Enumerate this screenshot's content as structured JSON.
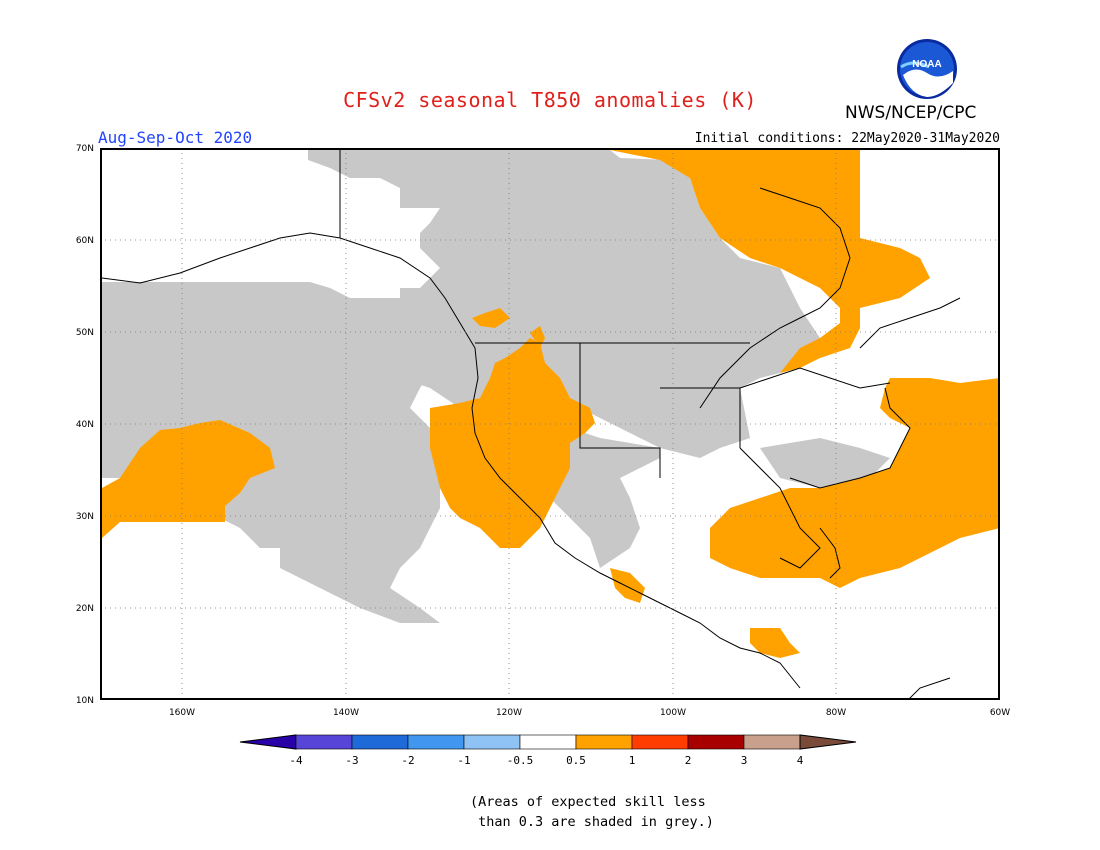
{
  "header": {
    "title": "CFSv2 seasonal T850 anomalies (K)",
    "season": "Aug-Sep-Oct 2020",
    "initial_conditions": "Initial conditions: 22May2020-31May2020",
    "agency": "NWS/NCEP/CPC",
    "logo_text": "NOAA"
  },
  "map": {
    "lat_labels": [
      "70N",
      "60N",
      "50N",
      "40N",
      "30N",
      "20N",
      "10N"
    ],
    "lon_labels": [
      "160W",
      "140W",
      "120W",
      "100W",
      "80W",
      "60W"
    ],
    "colors": {
      "skill_grey": "#c8c8c8",
      "warm": "#ffa200",
      "coast": "#000000"
    }
  },
  "legend": {
    "labels": [
      "-4",
      "-3",
      "-2",
      "-1",
      "-0.5",
      "0.5",
      "1",
      "2",
      "3",
      "4"
    ],
    "colors": [
      "#2a00a8",
      "#5645d6",
      "#1f6ad9",
      "#4196ef",
      "#8fc2f5",
      "#ffffff",
      "#ffa200",
      "#ff3d00",
      "#a80000",
      "#c8a08c",
      "#7b4b3a"
    ]
  },
  "note": {
    "line1": "(Areas of expected skill less",
    "line2": " than 0.3 are shaded in grey.)"
  }
}
